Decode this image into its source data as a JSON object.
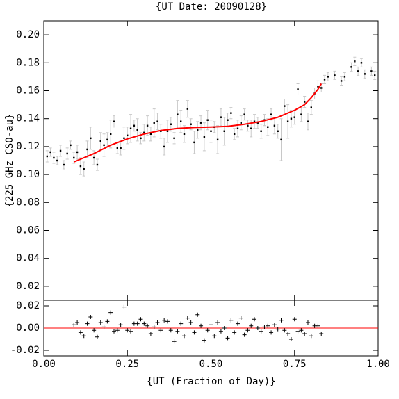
{
  "chart_data": [
    {
      "type": "scatter",
      "title": "{UT Date: 20090128}",
      "ylabel": "{225 GHz CSO-au}",
      "xlim": [
        0,
        1
      ],
      "xticks": [
        0,
        0.25,
        0.5,
        0.75,
        1
      ],
      "ylim": [
        0.01,
        0.21
      ],
      "yticks": [
        0.02,
        0.04,
        0.06,
        0.08,
        {
          "value": 0.1,
          "label": "0.10"
        },
        0.12,
        0.14,
        0.16,
        0.18,
        {
          "value": 0.2,
          "label": "0.20"
        }
      ],
      "series": [
        {
          "name": "tau",
          "color": "#000000",
          "error_color": "#c8c8c8",
          "x": [
            0.01,
            0.02,
            0.03,
            0.04,
            0.05,
            0.06,
            0.07,
            0.08,
            0.09,
            0.1,
            0.11,
            0.12,
            0.13,
            0.14,
            0.15,
            0.16,
            0.17,
            0.18,
            0.19,
            0.2,
            0.21,
            0.22,
            0.23,
            0.24,
            0.25,
            0.26,
            0.27,
            0.28,
            0.29,
            0.3,
            0.31,
            0.32,
            0.33,
            0.34,
            0.35,
            0.36,
            0.37,
            0.38,
            0.39,
            0.4,
            0.41,
            0.42,
            0.43,
            0.44,
            0.45,
            0.46,
            0.47,
            0.48,
            0.49,
            0.5,
            0.51,
            0.52,
            0.53,
            0.54,
            0.55,
            0.56,
            0.57,
            0.58,
            0.59,
            0.6,
            0.61,
            0.62,
            0.63,
            0.64,
            0.65,
            0.66,
            0.67,
            0.68,
            0.69,
            0.7,
            0.71,
            0.72,
            0.73,
            0.74,
            0.75,
            0.76,
            0.77,
            0.78,
            0.79,
            0.8,
            0.81,
            0.82,
            0.83,
            0.84,
            0.85,
            0.87,
            0.89,
            0.9,
            0.92,
            0.93,
            0.94,
            0.95,
            0.96,
            0.98,
            0.99
          ],
          "values": [
            0.113,
            0.116,
            0.112,
            0.11,
            0.117,
            0.107,
            0.115,
            0.121,
            0.112,
            0.116,
            0.106,
            0.104,
            0.118,
            0.126,
            0.112,
            0.107,
            0.124,
            0.121,
            0.125,
            0.129,
            0.138,
            0.119,
            0.119,
            0.126,
            0.128,
            0.133,
            0.135,
            0.132,
            0.126,
            0.13,
            0.135,
            0.129,
            0.137,
            0.138,
            0.131,
            0.12,
            0.131,
            0.136,
            0.126,
            0.143,
            0.138,
            0.129,
            0.147,
            0.136,
            0.123,
            0.132,
            0.137,
            0.127,
            0.139,
            0.131,
            0.134,
            0.125,
            0.141,
            0.131,
            0.139,
            0.144,
            0.129,
            0.133,
            0.137,
            0.143,
            0.135,
            0.133,
            0.138,
            0.137,
            0.131,
            0.139,
            0.134,
            0.143,
            0.135,
            0.131,
            0.125,
            0.149,
            0.138,
            0.14,
            0.141,
            0.161,
            0.143,
            0.152,
            0.138,
            0.148,
            0.158,
            0.163,
            0.162,
            0.168,
            0.17,
            0.171,
            0.167,
            0.17,
            0.177,
            0.181,
            0.174,
            0.18,
            0.172,
            0.174,
            0.171
          ],
          "errors": [
            0.004,
            0.003,
            0.004,
            0.003,
            0.004,
            0.003,
            0.004,
            0.003,
            0.004,
            0.005,
            0.006,
            0.005,
            0.006,
            0.008,
            0.005,
            0.004,
            0.006,
            0.008,
            0.005,
            0.01,
            0.004,
            0.004,
            0.005,
            0.008,
            0.006,
            0.01,
            0.004,
            0.008,
            0.004,
            0.006,
            0.007,
            0.005,
            0.01,
            0.006,
            0.005,
            0.006,
            0.008,
            0.005,
            0.004,
            0.01,
            0.008,
            0.006,
            0.006,
            0.004,
            0.008,
            0.006,
            0.005,
            0.01,
            0.007,
            0.008,
            0.004,
            0.01,
            0.006,
            0.01,
            0.005,
            0.004,
            0.004,
            0.006,
            0.005,
            0.004,
            0.004,
            0.006,
            0.005,
            0.004,
            0.005,
            0.004,
            0.006,
            0.004,
            0.006,
            0.005,
            0.015,
            0.005,
            0.012,
            0.006,
            0.005,
            0.004,
            0.005,
            0.004,
            0.006,
            0.005,
            0.004,
            0.004,
            0.003,
            0.003,
            0.003,
            0.003,
            0.003,
            0.003,
            0.003,
            0.003,
            0.003,
            0.003,
            0.003,
            0.003,
            0.003
          ]
        },
        {
          "name": "fit",
          "type": "line",
          "color": "#ff0000",
          "x": [
            0.09,
            0.15,
            0.2,
            0.25,
            0.3,
            0.35,
            0.4,
            0.45,
            0.5,
            0.55,
            0.6,
            0.65,
            0.7,
            0.75,
            0.78,
            0.8,
            0.82,
            0.83
          ],
          "values": [
            0.109,
            0.115,
            0.121,
            0.1255,
            0.129,
            0.1315,
            0.133,
            0.1337,
            0.134,
            0.1345,
            0.136,
            0.138,
            0.141,
            0.146,
            0.15,
            0.155,
            0.161,
            0.165
          ]
        }
      ]
    },
    {
      "type": "residual",
      "xlabel": "{UT (Fraction of Day)}",
      "xlim": [
        0,
        1
      ],
      "xticks": [
        {
          "value": 0,
          "label": "0.00"
        },
        0.25,
        {
          "value": 0.5,
          "label": "0.50"
        },
        0.75,
        {
          "value": 1,
          "label": "1.00"
        }
      ],
      "ylim": [
        -0.025,
        0.025
      ],
      "yticks": [
        -0.02,
        {
          "value": 0,
          "label": "0.00"
        },
        0.02
      ],
      "reference_line": {
        "value": 0,
        "color": "#ff0000"
      },
      "series": [
        {
          "name": "residuals",
          "color": "#000000",
          "x": [
            0.09,
            0.1,
            0.11,
            0.12,
            0.13,
            0.14,
            0.15,
            0.16,
            0.17,
            0.18,
            0.19,
            0.2,
            0.21,
            0.22,
            0.23,
            0.24,
            0.25,
            0.26,
            0.27,
            0.28,
            0.29,
            0.3,
            0.31,
            0.32,
            0.33,
            0.34,
            0.35,
            0.36,
            0.37,
            0.38,
            0.39,
            0.4,
            0.41,
            0.42,
            0.43,
            0.44,
            0.45,
            0.46,
            0.47,
            0.48,
            0.49,
            0.5,
            0.51,
            0.52,
            0.53,
            0.54,
            0.55,
            0.56,
            0.57,
            0.58,
            0.59,
            0.6,
            0.61,
            0.62,
            0.63,
            0.64,
            0.65,
            0.66,
            0.67,
            0.68,
            0.69,
            0.7,
            0.71,
            0.72,
            0.73,
            0.74,
            0.75,
            0.76,
            0.77,
            0.78,
            0.79,
            0.8,
            0.81,
            0.82,
            0.83
          ],
          "values": [
            0.003,
            0.005,
            -0.004,
            -0.007,
            0.004,
            0.01,
            -0.002,
            -0.008,
            0.005,
            0.001,
            0.006,
            0.014,
            -0.003,
            -0.002,
            0.003,
            0.019,
            -0.002,
            -0.003,
            0.004,
            0.004,
            0.008,
            0.004,
            0.002,
            -0.005,
            0.001,
            0.005,
            -0.002,
            0.007,
            0.006,
            -0.002,
            -0.012,
            -0.003,
            0.004,
            -0.007,
            0.009,
            0.005,
            -0.004,
            0.012,
            0.002,
            -0.011,
            -0.002,
            0.003,
            -0.007,
            0.005,
            -0.003,
            0,
            -0.009,
            0.007,
            -0.004,
            0.004,
            0.009,
            -0.006,
            -0.002,
            0.002,
            0.008,
            0,
            -0.003,
            0.001,
            0.002,
            -0.004,
            0.003,
            -0.001,
            0.007,
            -0.002,
            -0.005,
            -0.01,
            0.008,
            -0.003,
            -0.002,
            -0.005,
            0.005,
            -0.007,
            0.002,
            0.002,
            -0.005
          ]
        }
      ]
    }
  ]
}
